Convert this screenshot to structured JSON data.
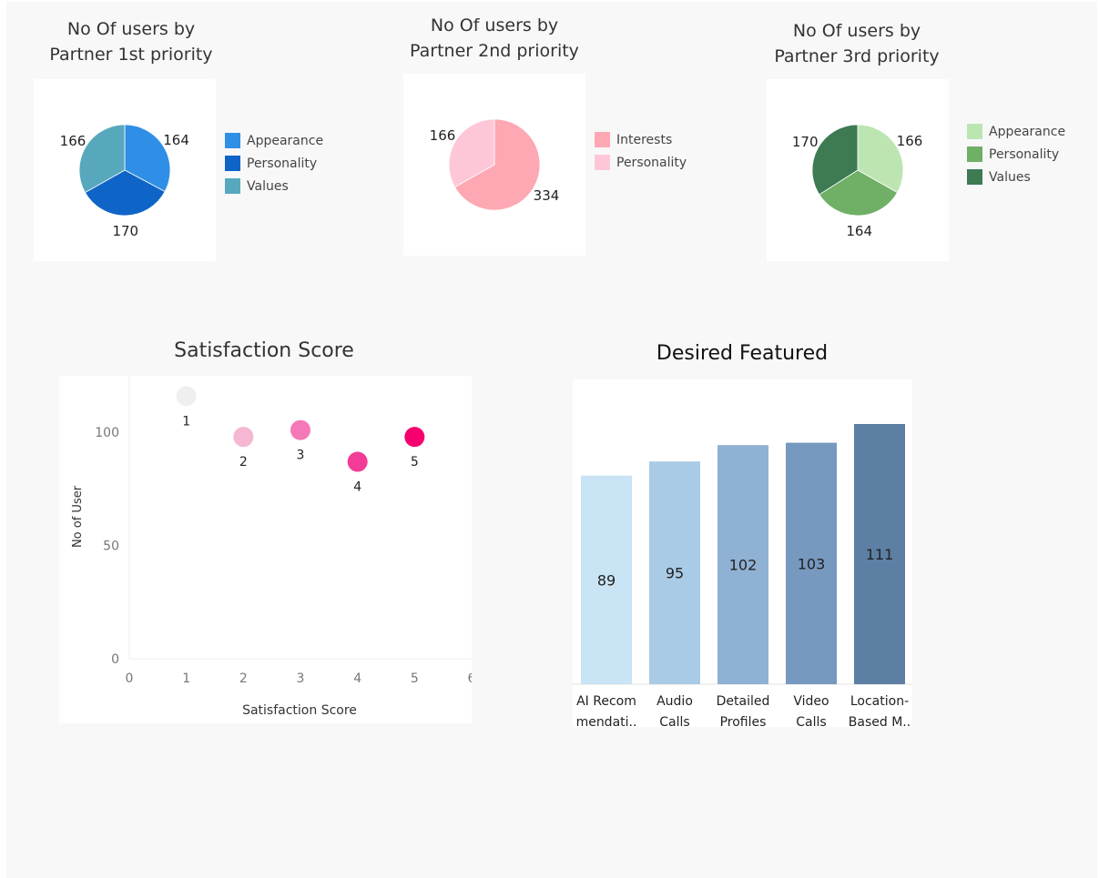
{
  "pies": [
    {
      "title_line1": "No Of users by",
      "title_line2": "Partner 1st priority",
      "chart_data": {
        "type": "pie",
        "slices": [
          {
            "label": "Appearance",
            "value": 164,
            "color": "#2f8fe6"
          },
          {
            "label": "Personality",
            "value": 170,
            "color": "#0f64c8"
          },
          {
            "label": "Values",
            "value": 166,
            "color": "#57a8bd"
          }
        ]
      }
    },
    {
      "title_line1": "No Of users by",
      "title_line2": "Partner 2nd priority",
      "chart_data": {
        "type": "pie",
        "slices": [
          {
            "label": "Interests",
            "value": 334,
            "color": "#fda8b2"
          },
          {
            "label": "Personality",
            "value": 166,
            "color": "#fec7d7"
          }
        ]
      }
    },
    {
      "title_line1": "No Of users by",
      "title_line2": "Partner 3rd priority",
      "chart_data": {
        "type": "pie",
        "slices": [
          {
            "label": "Appearance",
            "value": 166,
            "color": "#bde5b2"
          },
          {
            "label": "Personality",
            "value": 164,
            "color": "#6fb066"
          },
          {
            "label": "Values",
            "value": 170,
            "color": "#3e7a52"
          }
        ]
      }
    }
  ],
  "scatter": {
    "title": "Satisfaction Score",
    "chart_data": {
      "type": "scatter",
      "xlabel": "Satisfaction Score",
      "ylabel": "No of User",
      "xlim": [
        0,
        6
      ],
      "ylim": [
        0,
        125
      ],
      "x_ticks": [
        "0",
        "1",
        "2",
        "3",
        "4",
        "5",
        "6"
      ],
      "y_ticks": [
        "0",
        "50",
        "100"
      ],
      "points": [
        {
          "x": 1,
          "y": 116,
          "label": "1",
          "color": "#efefef"
        },
        {
          "x": 2,
          "y": 98,
          "label": "2",
          "color": "#f5b7d2"
        },
        {
          "x": 3,
          "y": 101,
          "label": "3",
          "color": "#f578b8"
        },
        {
          "x": 4,
          "y": 87,
          "label": "4",
          "color": "#f33b98"
        },
        {
          "x": 5,
          "y": 98,
          "label": "5",
          "color": "#f5006e"
        }
      ]
    }
  },
  "bars": {
    "title": "Desired Featured",
    "chart_data": {
      "type": "bar",
      "ylim": [
        0,
        130
      ],
      "categories": [
        {
          "line1": "AI Recom",
          "line2": "mendati.."
        },
        {
          "line1": "Audio",
          "line2": "Calls"
        },
        {
          "line1": "Detailed",
          "line2": "Profiles"
        },
        {
          "line1": "Video",
          "line2": "Calls"
        },
        {
          "line1": "Location-",
          "line2": "Based M.."
        }
      ],
      "values": [
        89,
        95,
        102,
        103,
        111
      ],
      "labels": [
        "89",
        "95",
        "102",
        "103",
        "111"
      ],
      "colors": [
        "#c9e4f4",
        "#a9cbe6",
        "#8fb1d3",
        "#7798bf",
        "#5d7fa4"
      ]
    }
  }
}
